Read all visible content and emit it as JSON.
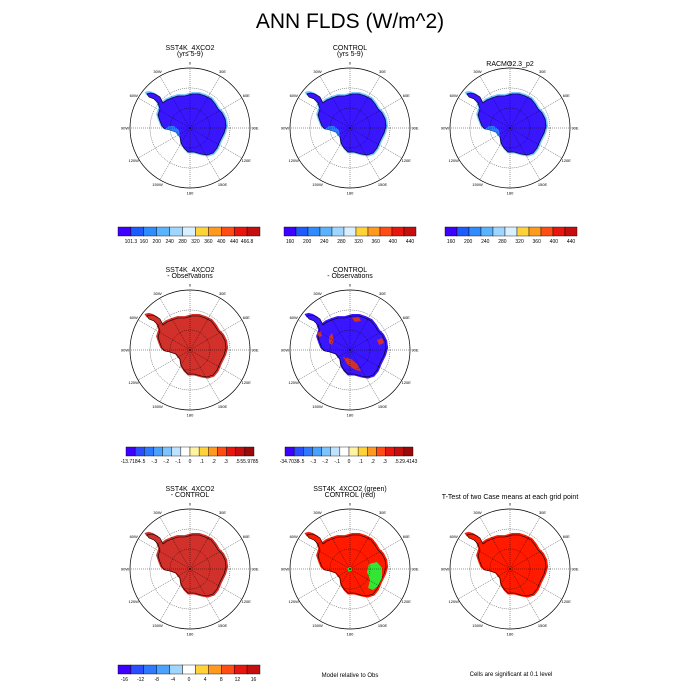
{
  "title": "ANN FLDS (W/m^2)",
  "lon_labels": [
    "0",
    "30E",
    "60E",
    "90E",
    "120E",
    "150E",
    "180",
    "150W",
    "120W",
    "90W",
    "60W",
    "30W"
  ],
  "panels": [
    {
      "id": "p1",
      "title1": "SST4K_4XCO2",
      "title2": "(yrs 5-9)",
      "fill": "#3a16ff",
      "rim": "#2a7dff",
      "edge": "#7ec8ff",
      "type": "field"
    },
    {
      "id": "p2",
      "title1": "CONTROL",
      "title2": "(yrs 5-9)",
      "fill": "#3a16ff",
      "rim": "#2a7dff",
      "edge": "#7ec8ff",
      "type": "field"
    },
    {
      "id": "p3",
      "title1": "RACMO2.3_p2",
      "title2": "",
      "fill": "#3a16ff",
      "rim": "#2a7dff",
      "edge": "#7ec8ff",
      "type": "field"
    },
    {
      "id": "p4",
      "title1": "SST4K_4XCO2",
      "title2": "- Observations",
      "fill": "#d2302a",
      "rim": "#d2302a",
      "edge": "#d2302a",
      "type": "diff"
    },
    {
      "id": "p5",
      "title1": "CONTROL",
      "title2": "- Observations",
      "fill": "#3a16ff",
      "rim": "#3a16ff",
      "edge": "#3a16ff",
      "type": "diff2"
    },
    {
      "id": "p6",
      "title1": "SST4K_4XCO2",
      "title2": "- CONTROL",
      "fill": "#d2302a",
      "rim": "#d2302a",
      "edge": "#d2302a",
      "type": "diff"
    },
    {
      "id": "p7",
      "title1": "SST4K_4XCO2 (green)",
      "title2": "CONTROL (red)",
      "fill": "#ff1a00",
      "rim": "#ff1a00",
      "edge": "#ff1a00",
      "type": "compare"
    },
    {
      "id": "p8",
      "title1": "T-Test of two Case means at each grid point",
      "title2": "",
      "fill": "#ff1a00",
      "rim": "#ff1a00",
      "edge": "#ff1a00",
      "type": "ttest"
    }
  ],
  "colorbars": [
    {
      "id": "cb1",
      "colors": [
        "#3e00ff",
        "#1d5bff",
        "#2e8cff",
        "#5ab3ff",
        "#9ed6ff",
        "#d8f0ff",
        "#ffd23a",
        "#ff9a1e",
        "#ff4d14",
        "#e8160e",
        "#c50e0e"
      ],
      "labels": [
        "101.3",
        "160",
        "200",
        "240",
        "280",
        "320",
        "360",
        "400",
        "440",
        "466.8"
      ]
    },
    {
      "id": "cb2",
      "colors": [
        "#3e00ff",
        "#1d5bff",
        "#2e8cff",
        "#5ab3ff",
        "#9ed6ff",
        "#d8f0ff",
        "#ffd23a",
        "#ff9a1e",
        "#ff4d14",
        "#e8160e",
        "#c50e0e"
      ],
      "labels": [
        "160",
        "200",
        "240",
        "280",
        "320",
        "360",
        "400",
        "440"
      ]
    },
    {
      "id": "cb3",
      "colors": [
        "#3e00ff",
        "#1d5bff",
        "#2e8cff",
        "#5ab3ff",
        "#9ed6ff",
        "#d8f0ff",
        "#ffd23a",
        "#ff9a1e",
        "#ff4d14",
        "#e8160e",
        "#c50e0e"
      ],
      "labels": [
        "160",
        "200",
        "240",
        "280",
        "320",
        "360",
        "400",
        "440"
      ]
    },
    {
      "id": "cb4",
      "colors": [
        "#3e00ff",
        "#2a4dff",
        "#2e79ff",
        "#4aa2ff",
        "#7cc3ff",
        "#bfe3ff",
        "#ffffff",
        "#fff2a0",
        "#ffd23a",
        "#ff9a1e",
        "#ff4d14",
        "#e8160e",
        "#c50e0e",
        "#9a0a0a"
      ],
      "labels": [
        "-13.7184",
        "-.5",
        "-.3",
        "-.2",
        "-.1",
        "0",
        ".1",
        ".2",
        ".3",
        ".5",
        "55.9785"
      ]
    },
    {
      "id": "cb5",
      "colors": [
        "#3e00ff",
        "#2a4dff",
        "#2e79ff",
        "#4aa2ff",
        "#7cc3ff",
        "#bfe3ff",
        "#ffffff",
        "#fff2a0",
        "#ffd23a",
        "#ff9a1e",
        "#ff4d14",
        "#e8160e",
        "#c50e0e",
        "#9a0a0a"
      ],
      "labels": [
        "-34.7038",
        "-.5",
        "-.3",
        "-.2",
        "-.1",
        "0",
        ".1",
        ".2",
        ".3",
        ".5",
        "29.4143"
      ]
    },
    {
      "id": "cb6",
      "colors": [
        "#3e00ff",
        "#2a4dff",
        "#2e79ff",
        "#4aa2ff",
        "#9ed6ff",
        "#ffffff",
        "#ffd23a",
        "#ff9a1e",
        "#ff4d14",
        "#e8160e",
        "#c50e0e"
      ],
      "labels": [
        "-16",
        "-12",
        "-8",
        "-4",
        "0",
        "4",
        "8",
        "12",
        "16"
      ]
    }
  ],
  "notes": {
    "model_relative": "Model relative to Obs",
    "significance": "Cells are significant at 0.1 level"
  }
}
